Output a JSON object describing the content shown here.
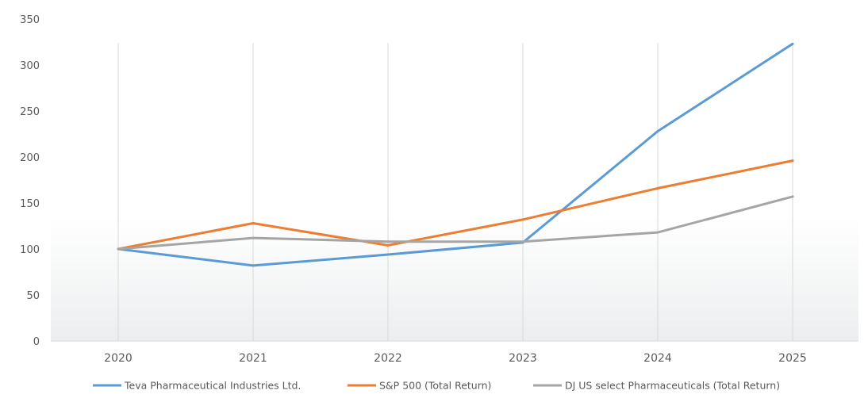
{
  "chart_data": {
    "type": "line",
    "categories": [
      "2020",
      "2021",
      "2022",
      "2023",
      "2024",
      "2025"
    ],
    "ylim": [
      0,
      350
    ],
    "yticks": [
      0,
      50,
      100,
      150,
      200,
      250,
      300,
      350
    ],
    "grid": "vertical lines at categories",
    "legend_position": "bottom",
    "series": [
      {
        "name": "Teva Pharmaceutical Industries Ltd.",
        "color": "#5b9bd5",
        "values": [
          100,
          82,
          94,
          107,
          228,
          323
        ]
      },
      {
        "name": "S&P 500 (Total Return)",
        "color": "#ed7d31",
        "values": [
          100,
          128,
          104,
          132,
          166,
          196
        ]
      },
      {
        "name": "DJ US select Pharmaceuticals (Total Return)",
        "color": "#a5a5a5",
        "values": [
          100,
          112,
          108,
          108,
          118,
          157
        ]
      }
    ]
  }
}
